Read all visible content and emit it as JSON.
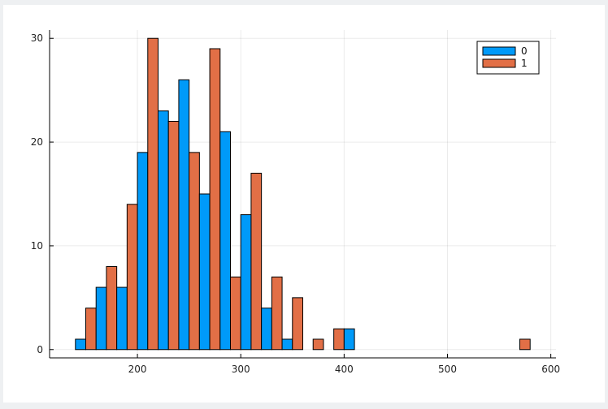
{
  "chart_data": {
    "type": "bar",
    "title": "",
    "xlabel": "",
    "ylabel": "",
    "xlim": [
      115,
      605
    ],
    "ylim": [
      -0.8,
      30.8
    ],
    "grid": true,
    "legend_placement": "top-right",
    "xticks": [
      200,
      300,
      400,
      500,
      600
    ],
    "yticks": [
      0,
      10,
      20,
      30
    ],
    "bin_width": 20,
    "bin_starts": [
      140,
      160,
      180,
      200,
      220,
      240,
      260,
      280,
      300,
      320,
      340,
      360,
      380,
      400,
      420,
      440,
      460,
      480,
      500,
      520,
      540,
      560
    ],
    "series": [
      {
        "name": "0",
        "color": "#009af9",
        "values": [
          1,
          6,
          6,
          19,
          23,
          26,
          15,
          21,
          13,
          4,
          1,
          0,
          0,
          2,
          0,
          0,
          0,
          0,
          0,
          0,
          0,
          0
        ]
      },
      {
        "name": "1",
        "color": "#e26f46",
        "values": [
          4,
          8,
          14,
          30,
          22,
          19,
          29,
          7,
          17,
          7,
          5,
          1,
          2,
          0,
          0,
          0,
          0,
          0,
          0,
          0,
          0,
          1
        ]
      }
    ]
  }
}
